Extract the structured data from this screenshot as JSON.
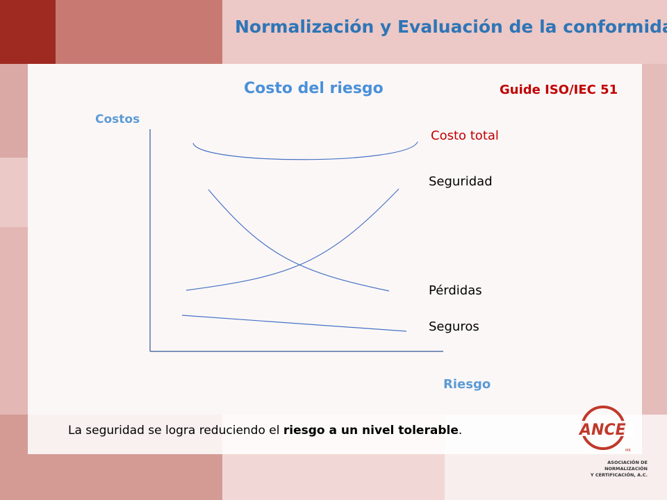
{
  "slide": {
    "title": "Normalización y Evaluación de la conformidad",
    "subtitle": "Costo del riesgo",
    "reference": "Guide ISO/IEC  51"
  },
  "diagram": {
    "y_axis_label": "Costos",
    "x_axis_label": "Riesgo",
    "curves": {
      "total": "Costo total",
      "safety": "Seguridad",
      "losses": "Pérdidas",
      "insurance": "Seguros"
    },
    "curve_color": "#4472c4",
    "axis_color": "#2f5597"
  },
  "footer": {
    "text_part1": "La seguridad se logra reduciendo el ",
    "text_bold": "riesgo a un nivel tolerable",
    "text_part2": "."
  },
  "logo": {
    "name": "ANCE",
    "line1": "ASOCIACIÓN DE NORMALIZACIÓN",
    "line2": "Y CERTIFICACIÓN, A.C.",
    "color": "#c0392b"
  }
}
